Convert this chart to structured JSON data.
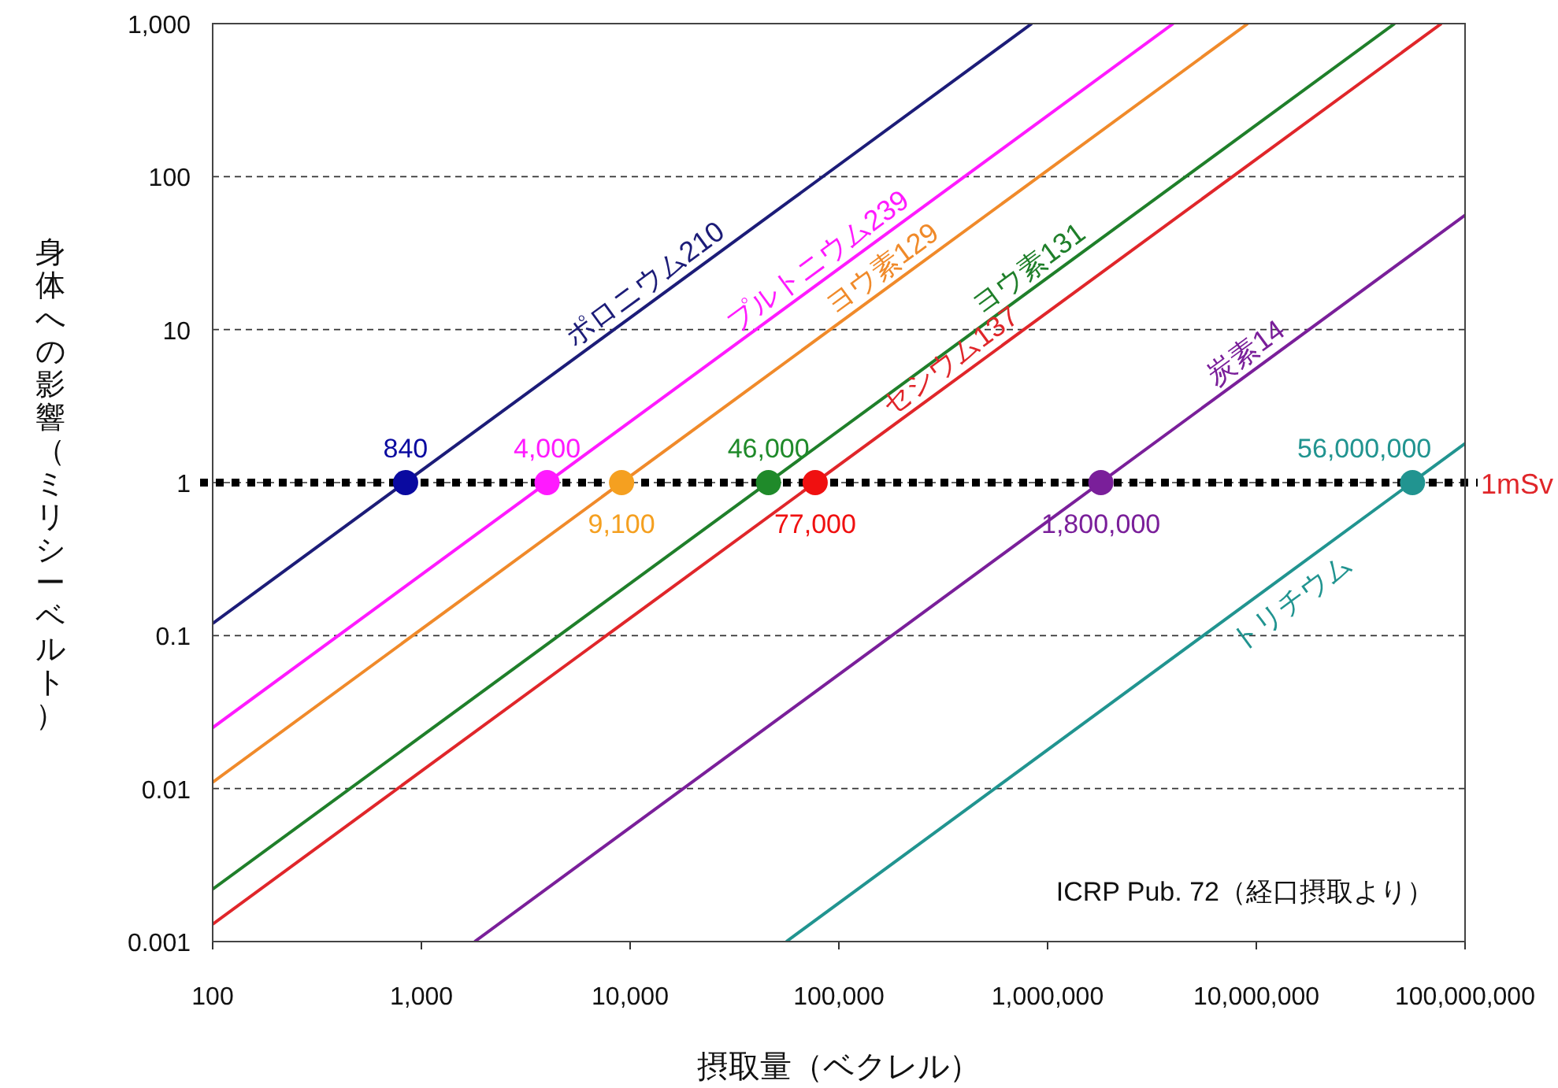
{
  "chart_data": {
    "type": "line",
    "ylabel": "身体への影響（ミリシーベルト）",
    "xlabel": "摂取量（ベクレル）",
    "log": "xy",
    "grid": "y",
    "line_style": "solid",
    "xlim": [
      100,
      100000000
    ],
    "ylim": [
      0.001,
      1000
    ],
    "xticks": [
      {
        "value": 100,
        "label": "100"
      },
      {
        "value": 1000,
        "label": "1,000"
      },
      {
        "value": 10000,
        "label": "10,000"
      },
      {
        "value": 100000,
        "label": "100,000"
      },
      {
        "value": 1000000,
        "label": "1,000,000"
      },
      {
        "value": 10000000,
        "label": "10,000,000"
      },
      {
        "value": 100000000,
        "label": "100,000,000"
      }
    ],
    "yticks": [
      {
        "value": 0.001,
        "label": "0.001"
      },
      {
        "value": 0.01,
        "label": "0.01"
      },
      {
        "value": 0.1,
        "label": "0.1"
      },
      1,
      10,
      100,
      {
        "value": 1000,
        "label": "1,000"
      }
    ],
    "series": [
      {
        "name": "ポロニウム210",
        "color": "#1c1c78",
        "x": [
          100,
          840000
        ],
        "values": [
          0.12,
          1000
        ]
      },
      {
        "name": "プルトニウム239",
        "color": "#ff1aff",
        "x": [
          100,
          4000000
        ],
        "values": [
          0.025,
          1000
        ]
      },
      {
        "name": "ヨウ素129",
        "color": "#f08a2a",
        "x": [
          100,
          9100000
        ],
        "values": [
          0.011,
          1000
        ]
      },
      {
        "name": "ヨウ素131",
        "color": "#1f7f2a",
        "x": [
          100,
          46000000
        ],
        "values": [
          0.0022,
          1000
        ]
      },
      {
        "name": "セシウム137",
        "color": "#e0262a",
        "x": [
          100,
          77000000
        ],
        "values": [
          0.0013,
          1000
        ]
      },
      {
        "name": "炭素14",
        "color": "#7a1f9a",
        "x": [
          1800,
          100000000
        ],
        "values": [
          0.001,
          56
        ]
      },
      {
        "name": "トリチウム",
        "color": "#219490",
        "x": [
          56000,
          100000000
        ],
        "values": [
          0.001,
          1.8
        ]
      },
      {
        "type": "scatter",
        "marker": "circle",
        "x": [
          840,
          4000,
          9100,
          46000,
          77000,
          1800000,
          56000000
        ],
        "values": [
          1,
          1,
          1,
          1,
          1,
          1,
          1
        ],
        "colors": [
          "#0a0aa0",
          "#ff1aff",
          "#f5a020",
          "#1f8a2a",
          "#f01010",
          "#7a1f9a",
          "#219490"
        ]
      }
    ],
    "ref_lines": [
      {
        "axis": "y",
        "value": 1,
        "label": "1mSv",
        "color": "#000000",
        "line_style": "dotted"
      }
    ],
    "annotations": [
      {
        "text": "840",
        "x": 840,
        "y": 1
      },
      {
        "text": "4,000",
        "x": 4000,
        "y": 1
      },
      {
        "text": "9,100",
        "x": 9100,
        "y": 1
      },
      {
        "text": "46,000",
        "x": 46000,
        "y": 1
      },
      {
        "text": "77,000",
        "x": 77000,
        "y": 1
      },
      {
        "text": "1,800,000",
        "x": 1800000,
        "y": 1
      },
      {
        "text": "56,000,000",
        "x": 56000000,
        "y": 1
      },
      "ICRP Pub. 72（経口摂取より）"
    ]
  }
}
